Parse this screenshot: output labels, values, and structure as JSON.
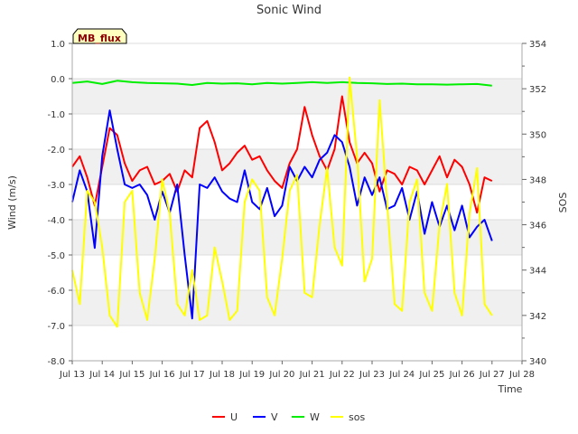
{
  "chart_data": {
    "type": "line",
    "title": "Sonic Wind",
    "badge": "MB_flux",
    "xlabel": "Time",
    "ylabel": "Wind (m/s)",
    "y2label": "SOS",
    "xlim": [
      13,
      28
    ],
    "ylim": [
      -8,
      1
    ],
    "y2lim": [
      340,
      354
    ],
    "x_ticks": [
      13,
      14,
      15,
      16,
      17,
      18,
      19,
      20,
      21,
      22,
      23,
      24,
      25,
      26,
      27,
      28
    ],
    "x_tick_labels": [
      "Jul 13",
      "Jul 14",
      "Jul 15",
      "Jul 16",
      "Jul 17",
      "Jul 18",
      "Jul 19",
      "Jul 20",
      "Jul 21",
      "Jul 22",
      "Jul 23",
      "Jul 24",
      "Jul 25",
      "Jul 26",
      "Jul 27",
      "Jul 28"
    ],
    "y_ticks": [
      1,
      0,
      -1,
      -2,
      -3,
      -4,
      -5,
      -6,
      -7,
      -8
    ],
    "y_tick_labels": [
      "1.0",
      "0.0",
      "-1.0",
      "-2.0",
      "-3.0",
      "-4.0",
      "-5.0",
      "-6.0",
      "-7.0",
      "-8.0"
    ],
    "y2_ticks": [
      340,
      342,
      344,
      346,
      348,
      350,
      352,
      354
    ],
    "y2_tick_labels": [
      "340",
      "342",
      "344",
      "346",
      "348",
      "350",
      "352",
      "354"
    ],
    "legend_position": "bottom-center",
    "series": [
      {
        "name": "U",
        "color": "#ff0000",
        "axis": "left",
        "x": [
          13.0,
          13.25,
          13.5,
          13.75,
          14.0,
          14.25,
          14.5,
          14.75,
          15.0,
          15.25,
          15.5,
          15.75,
          16.0,
          16.25,
          16.5,
          16.75,
          17.0,
          17.25,
          17.5,
          17.75,
          18.0,
          18.25,
          18.5,
          18.75,
          19.0,
          19.25,
          19.5,
          19.75,
          20.0,
          20.25,
          20.5,
          20.75,
          21.0,
          21.25,
          21.5,
          21.75,
          22.0,
          22.25,
          22.5,
          22.75,
          23.0,
          23.25,
          23.5,
          23.75,
          24.0,
          24.25,
          24.5,
          24.75,
          25.0,
          25.25,
          25.5,
          25.75,
          26.0,
          26.25,
          26.5,
          26.75,
          27.0
        ],
        "values": [
          -2.5,
          -2.2,
          -2.8,
          -3.6,
          -2.5,
          -1.4,
          -1.6,
          -2.4,
          -2.9,
          -2.6,
          -2.5,
          -3.0,
          -2.9,
          -2.7,
          -3.2,
          -2.6,
          -2.8,
          -1.4,
          -1.2,
          -1.8,
          -2.6,
          -2.4,
          -2.1,
          -1.9,
          -2.3,
          -2.2,
          -2.6,
          -2.9,
          -3.1,
          -2.4,
          -2.0,
          -0.8,
          -1.6,
          -2.2,
          -2.6,
          -2.0,
          -0.5,
          -1.8,
          -2.4,
          -2.1,
          -2.4,
          -3.2,
          -2.6,
          -2.7,
          -3.0,
          -2.5,
          -2.6,
          -3.0,
          -2.6,
          -2.2,
          -2.8,
          -2.3,
          -2.5,
          -3.0,
          -3.8,
          -2.8,
          -2.9
        ]
      },
      {
        "name": "V",
        "color": "#0000ff",
        "axis": "left",
        "x": [
          13.0,
          13.25,
          13.5,
          13.75,
          14.0,
          14.25,
          14.5,
          14.75,
          15.0,
          15.25,
          15.5,
          15.75,
          16.0,
          16.25,
          16.5,
          16.75,
          17.0,
          17.25,
          17.5,
          17.75,
          18.0,
          18.25,
          18.5,
          18.75,
          19.0,
          19.25,
          19.5,
          19.75,
          20.0,
          20.25,
          20.5,
          20.75,
          21.0,
          21.25,
          21.5,
          21.75,
          22.0,
          22.25,
          22.5,
          22.75,
          23.0,
          23.25,
          23.5,
          23.75,
          24.0,
          24.25,
          24.5,
          24.75,
          25.0,
          25.25,
          25.5,
          25.75,
          26.0,
          26.25,
          26.5,
          26.75,
          27.0
        ],
        "values": [
          -3.5,
          -2.6,
          -3.2,
          -4.8,
          -2.2,
          -0.9,
          -2.0,
          -3.0,
          -3.1,
          -3.0,
          -3.3,
          -4.0,
          -3.2,
          -3.8,
          -3.0,
          -5.0,
          -6.8,
          -3.0,
          -3.1,
          -2.8,
          -3.2,
          -3.4,
          -3.5,
          -2.6,
          -3.5,
          -3.7,
          -3.1,
          -3.9,
          -3.6,
          -2.5,
          -2.9,
          -2.5,
          -2.8,
          -2.3,
          -2.1,
          -1.6,
          -1.8,
          -2.5,
          -3.6,
          -2.8,
          -3.3,
          -2.8,
          -3.7,
          -3.6,
          -3.1,
          -4.0,
          -3.2,
          -4.4,
          -3.5,
          -4.2,
          -3.6,
          -4.3,
          -3.6,
          -4.5,
          -4.2,
          -4.0,
          -4.6
        ]
      },
      {
        "name": "W",
        "color": "#00ee00",
        "axis": "left",
        "x": [
          13.0,
          13.5,
          14.0,
          14.5,
          15.0,
          15.5,
          16.0,
          16.5,
          17.0,
          17.5,
          18.0,
          18.5,
          19.0,
          19.5,
          20.0,
          20.5,
          21.0,
          21.5,
          22.0,
          22.5,
          23.0,
          23.5,
          24.0,
          24.5,
          25.0,
          25.5,
          26.0,
          26.5,
          27.0
        ],
        "values": [
          -0.12,
          -0.08,
          -0.15,
          -0.06,
          -0.1,
          -0.12,
          -0.13,
          -0.14,
          -0.18,
          -0.12,
          -0.14,
          -0.13,
          -0.16,
          -0.12,
          -0.14,
          -0.12,
          -0.1,
          -0.12,
          -0.1,
          -0.12,
          -0.13,
          -0.15,
          -0.14,
          -0.16,
          -0.16,
          -0.17,
          -0.16,
          -0.15,
          -0.2
        ]
      },
      {
        "name": "sos",
        "color": "#ffff00",
        "axis": "right",
        "x": [
          13.0,
          13.25,
          13.5,
          13.75,
          14.0,
          14.25,
          14.5,
          14.75,
          15.0,
          15.25,
          15.5,
          15.75,
          16.0,
          16.25,
          16.5,
          16.75,
          17.0,
          17.25,
          17.5,
          17.75,
          18.0,
          18.25,
          18.5,
          18.75,
          19.0,
          19.25,
          19.5,
          19.75,
          20.0,
          20.25,
          20.5,
          20.75,
          21.0,
          21.25,
          21.5,
          21.75,
          22.0,
          22.25,
          22.5,
          22.75,
          23.0,
          23.25,
          23.5,
          23.75,
          24.0,
          24.25,
          24.5,
          24.75,
          25.0,
          25.25,
          25.5,
          25.75,
          26.0,
          26.25,
          26.5,
          26.75,
          27.0
        ],
        "values": [
          344.0,
          342.5,
          347.5,
          347.0,
          345.0,
          342.0,
          341.5,
          347.0,
          347.5,
          343.0,
          341.8,
          344.5,
          348.0,
          346.5,
          342.5,
          342.0,
          344.0,
          341.8,
          342.0,
          345.0,
          343.5,
          341.8,
          342.2,
          347.0,
          348.0,
          347.5,
          342.8,
          342.0,
          344.5,
          347.5,
          348.2,
          343.0,
          342.8,
          346.0,
          348.5,
          345.0,
          344.2,
          352.5,
          349.0,
          343.5,
          344.5,
          351.5,
          347.0,
          342.5,
          342.2,
          347.0,
          348.0,
          343.0,
          342.2,
          346.0,
          347.8,
          343.0,
          342.0,
          346.5,
          348.5,
          342.5,
          342.0
        ]
      }
    ]
  }
}
